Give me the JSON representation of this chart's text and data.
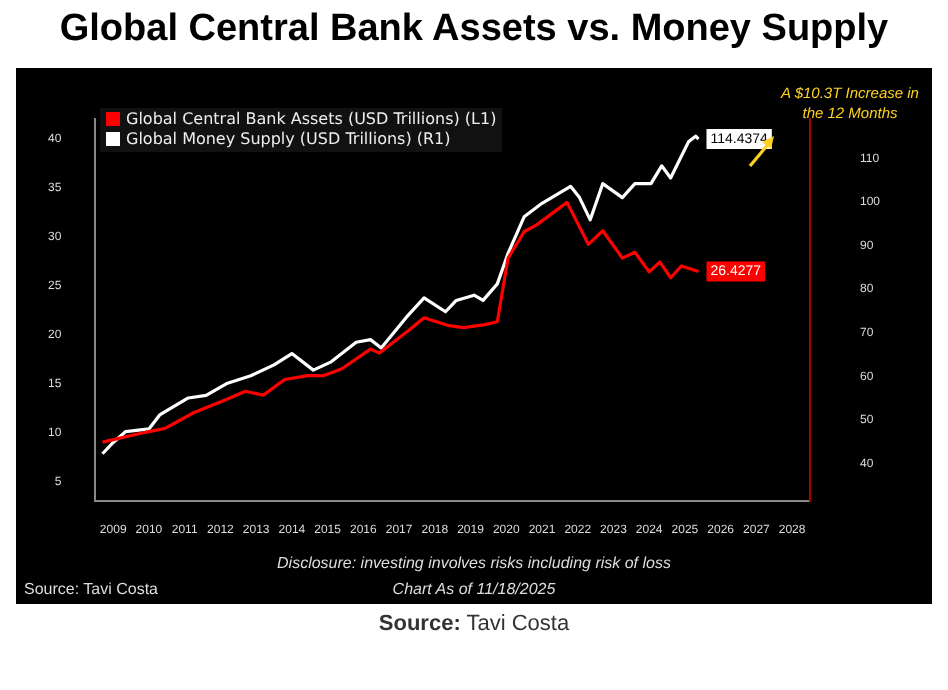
{
  "chart_data": {
    "type": "line",
    "title": "Global Central Bank Assets vs. Money Supply",
    "xlim": [
      2009,
      2029
    ],
    "xticks": [
      {
        "value": 2009.5,
        "label": "2009"
      },
      {
        "value": 2010.5,
        "label": "2010"
      },
      {
        "value": 2011.5,
        "label": "2011"
      },
      {
        "value": 2012.5,
        "label": "2012"
      },
      {
        "value": 2013.5,
        "label": "2013"
      },
      {
        "value": 2014.5,
        "label": "2014"
      },
      {
        "value": 2015.5,
        "label": "2015"
      },
      {
        "value": 2016.5,
        "label": "2016"
      },
      {
        "value": 2017.5,
        "label": "2017"
      },
      {
        "value": 2018.5,
        "label": "2018"
      },
      {
        "value": 2019.5,
        "label": "2019"
      },
      {
        "value": 2020.5,
        "label": "2020"
      },
      {
        "value": 2021.5,
        "label": "2021"
      },
      {
        "value": 2022.5,
        "label": "2022"
      },
      {
        "value": 2023.5,
        "label": "2023"
      },
      {
        "value": 2024.5,
        "label": "2024"
      },
      {
        "value": 2025.5,
        "label": "2025"
      },
      {
        "value": 2026.5,
        "label": "2026"
      },
      {
        "value": 2027.5,
        "label": "2027"
      },
      {
        "value": 2028.5,
        "label": "2028"
      }
    ],
    "ylim": [
      3,
      42
    ],
    "yticks": [
      5,
      10,
      15,
      20,
      25,
      30,
      35,
      40
    ],
    "y2lim": [
      31.4,
      119
    ],
    "y2ticks": [
      40,
      50,
      60,
      70,
      80,
      90,
      100,
      110
    ],
    "legend": "top left",
    "grid": false,
    "marker": "none",
    "line_style": "solid",
    "series": [
      {
        "name": "Global Central Bank Assets (USD Trillions) (L1)",
        "color": "#ff0000",
        "axis": "y",
        "x": [
          2009.2,
          2010.4,
          2010.95,
          2011.75,
          2012.7,
          2013.2,
          2013.7,
          2014.3,
          2014.95,
          2015.4,
          2015.9,
          2016.7,
          2016.95,
          2017.8,
          2018.2,
          2018.9,
          2019.3,
          2019.9,
          2020.25,
          2020.55,
          2021.0,
          2021.35,
          2022.2,
          2022.8,
          2023.2,
          2023.75,
          2024.1,
          2024.5,
          2024.8,
          2025.1,
          2025.4,
          2025.88
        ],
        "values": [
          9.0,
          10.0,
          10.4,
          12.0,
          13.4,
          14.2,
          13.8,
          15.4,
          15.8,
          15.8,
          16.5,
          18.5,
          18.1,
          20.5,
          21.7,
          20.9,
          20.7,
          21.0,
          21.3,
          27.8,
          30.5,
          31.2,
          33.5,
          29.2,
          30.6,
          27.8,
          28.4,
          26.4,
          27.4,
          25.8,
          27.0,
          26.4277
        ],
        "value_labels": [
          null,
          null,
          null,
          null,
          null,
          null,
          null,
          null,
          null,
          null,
          null,
          null,
          null,
          null,
          null,
          null,
          null,
          null,
          null,
          null,
          null,
          null,
          null,
          null,
          null,
          null,
          null,
          null,
          null,
          null,
          null,
          "26.4277"
        ]
      },
      {
        "name": "Global Money Supply (USD Trillions) (R1)",
        "color": "#ffffff",
        "axis": "y2",
        "x": [
          2009.2,
          2009.5,
          2009.85,
          2010.5,
          2010.8,
          2011.6,
          2012.1,
          2012.7,
          2013.35,
          2014.0,
          2014.5,
          2015.1,
          2015.6,
          2016.3,
          2016.7,
          2017.0,
          2017.7,
          2018.2,
          2018.8,
          2019.1,
          2019.6,
          2019.85,
          2020.25,
          2020.55,
          2021.0,
          2021.5,
          2022.3,
          2022.55,
          2022.85,
          2023.2,
          2023.75,
          2024.1,
          2024.55,
          2024.85,
          2025.1,
          2025.6,
          2025.8,
          2025.88
        ],
        "values": [
          42.2,
          44.8,
          47.3,
          47.9,
          51.1,
          55.0,
          55.6,
          58.4,
          60.1,
          62.6,
          65.2,
          61.4,
          63.3,
          67.8,
          68.4,
          66.5,
          73.5,
          78.0,
          74.8,
          77.4,
          78.6,
          77.4,
          81.2,
          88.2,
          96.6,
          99.7,
          103.6,
          101.0,
          95.9,
          104.2,
          101.0,
          104.2,
          104.2,
          108.3,
          105.5,
          113.8,
          115.1,
          114.4374
        ],
        "value_labels": [
          null,
          null,
          null,
          null,
          null,
          null,
          null,
          null,
          null,
          null,
          null,
          null,
          null,
          null,
          null,
          null,
          null,
          null,
          null,
          null,
          null,
          null,
          null,
          null,
          null,
          null,
          null,
          null,
          null,
          null,
          null,
          null,
          null,
          null,
          null,
          null,
          null,
          "114.4374"
        ]
      }
    ],
    "annotations": [
      "A $10.3T Increase in the 12 Months",
      "Disclosure: investing involves risks including risk of loss",
      "Source: Tavi Costa",
      "Chart As of 11/18/2025",
      "Source: Tavi Costa"
    ]
  }
}
